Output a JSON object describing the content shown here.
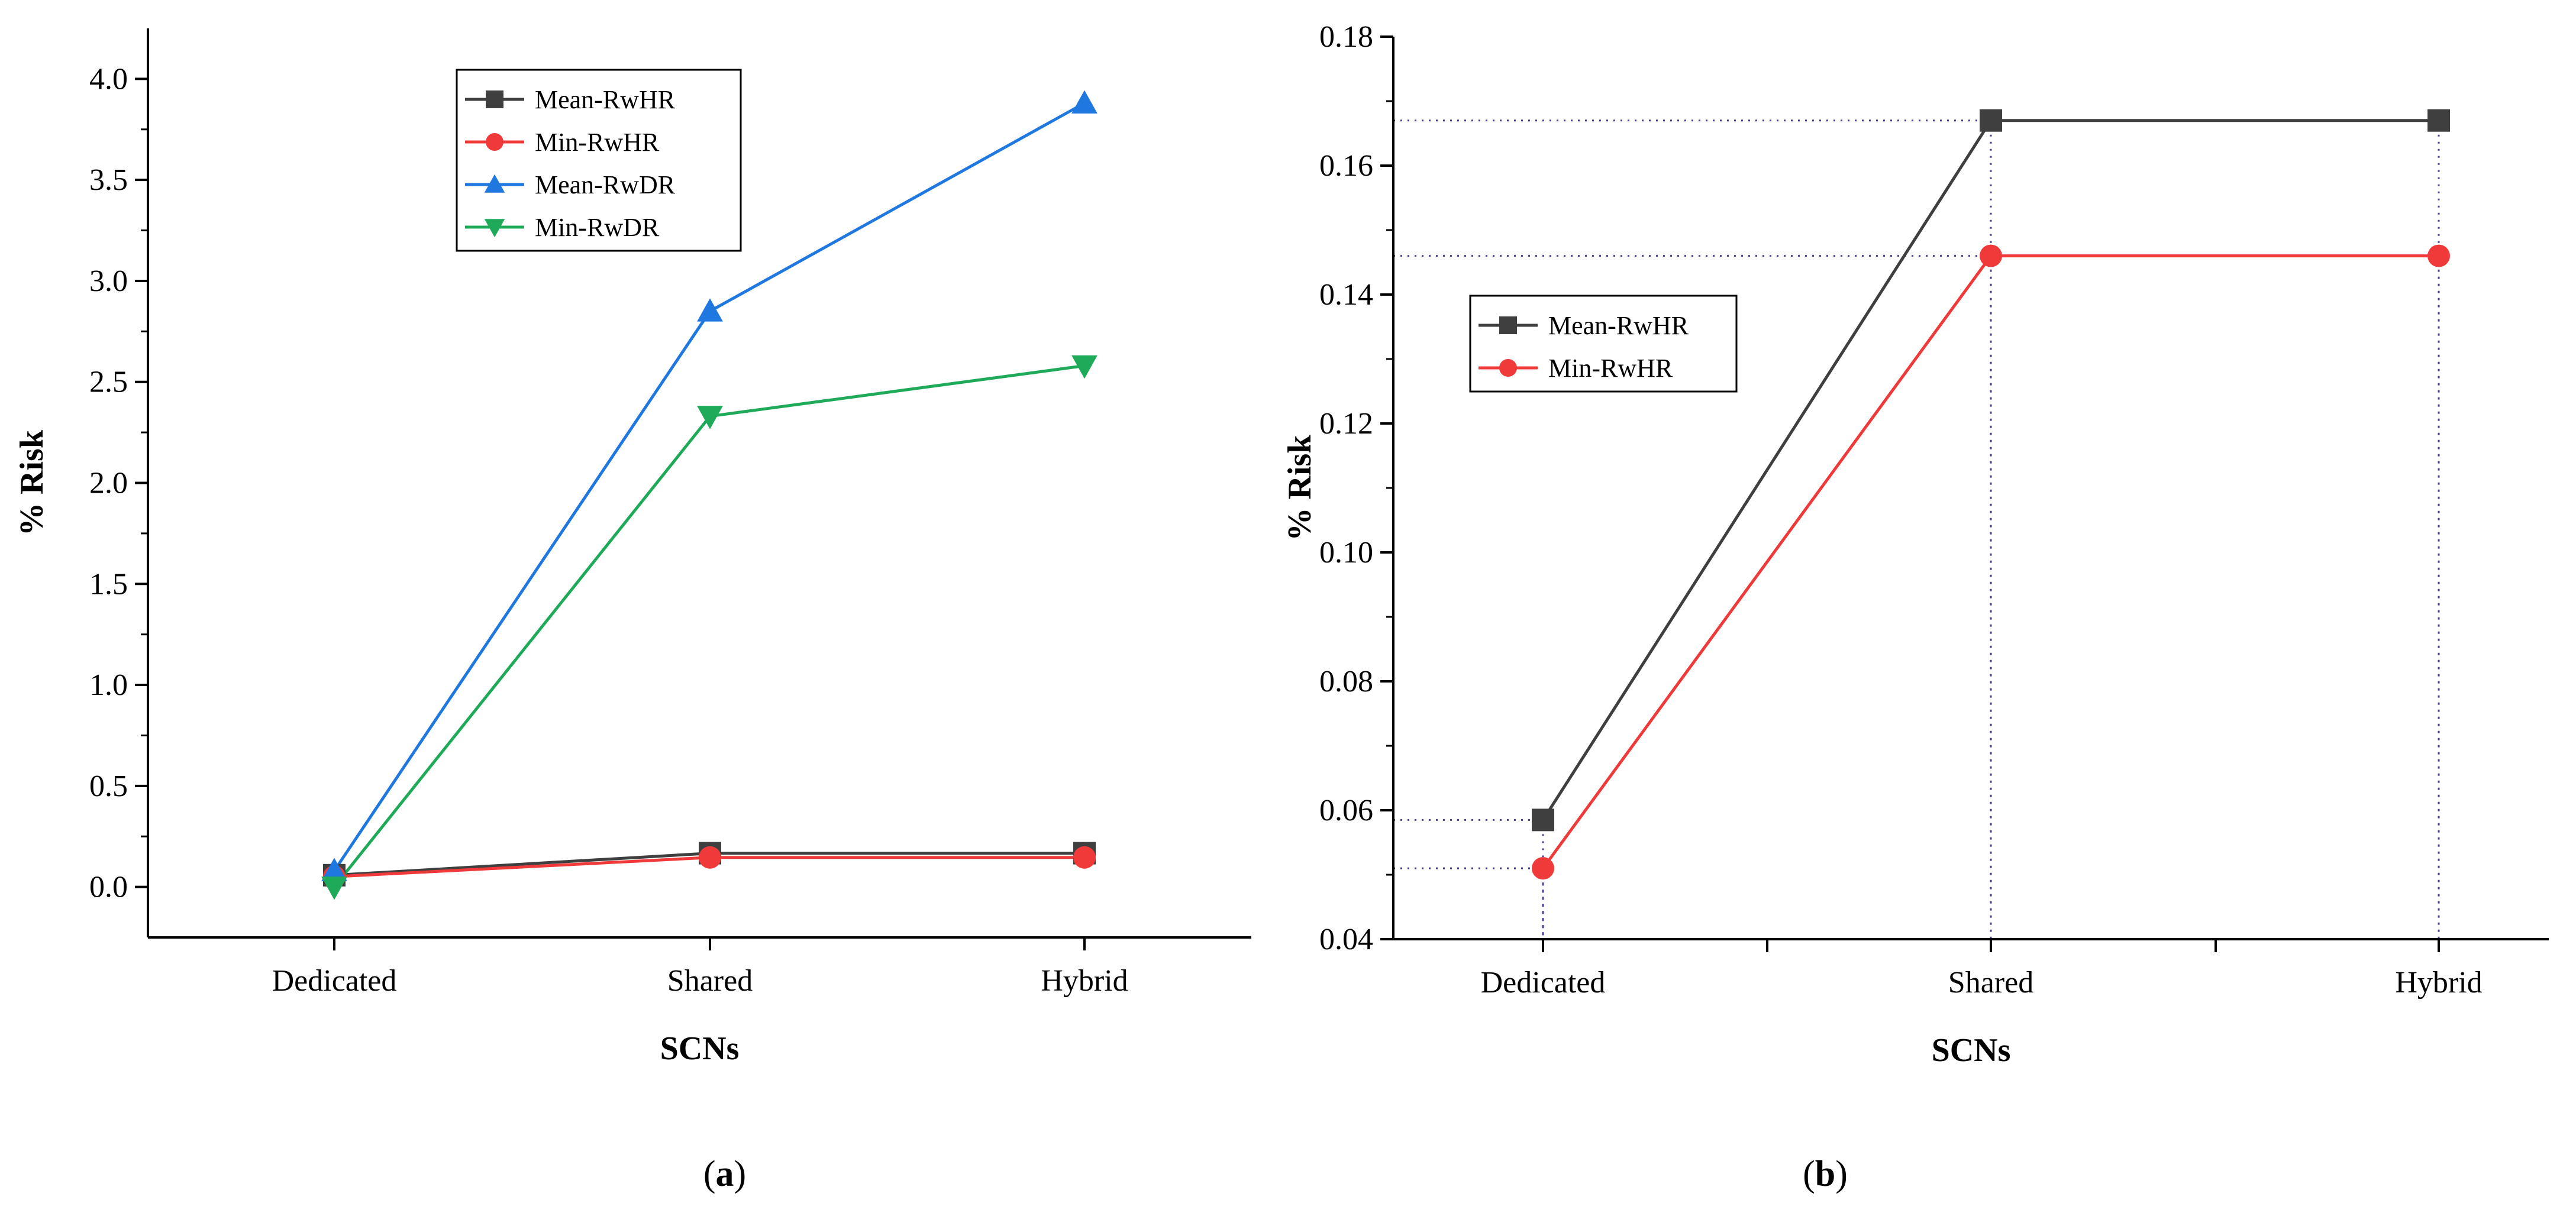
{
  "chart_data": [
    {
      "type": "line",
      "panel": "(a)",
      "xlabel": "SCNs",
      "ylabel": "% Risk",
      "categories": [
        "Dedicated",
        "Shared",
        "Hybrid"
      ],
      "ylim": [
        -0.25,
        4.25
      ],
      "yticks": [
        0.0,
        0.5,
        1.0,
        1.5,
        2.0,
        2.5,
        3.0,
        3.5,
        4.0
      ],
      "ytick_labels": [
        "0.0",
        "0.5",
        "1.0",
        "1.5",
        "2.0",
        "2.5",
        "3.0",
        "3.5",
        "4.0"
      ],
      "legend_position": "top-center",
      "series": [
        {
          "name": "Mean-RwHR",
          "color": "#3f3f3f",
          "marker": "square",
          "values": [
            0.058,
            0.167,
            0.167
          ]
        },
        {
          "name": "Min-RwHR",
          "color": "#f03a3a",
          "marker": "circle",
          "values": [
            0.051,
            0.146,
            0.146
          ]
        },
        {
          "name": "Mean-RwDR",
          "color": "#1f77e0",
          "marker": "triangle-up",
          "values": [
            0.08,
            2.85,
            3.88
          ]
        },
        {
          "name": "Min-RwDR",
          "color": "#1faa5a",
          "marker": "triangle-down",
          "values": [
            0.0,
            2.33,
            2.58
          ]
        }
      ]
    },
    {
      "type": "line",
      "panel": "(b)",
      "xlabel": "SCNs",
      "ylabel": "% Risk",
      "categories": [
        "Dedicated",
        "Shared",
        "Hybrid"
      ],
      "ylim": [
        0.04,
        0.18
      ],
      "yticks": [
        0.04,
        0.06,
        0.08,
        0.1,
        0.12,
        0.14,
        0.16,
        0.18
      ],
      "ytick_labels": [
        "0.04",
        "0.06",
        "0.08",
        "0.10",
        "0.12",
        "0.14",
        "0.16",
        "0.18"
      ],
      "legend_position": "upper-left",
      "dotted_reference_lines": true,
      "series": [
        {
          "name": "Mean-RwHR",
          "color": "#3f3f3f",
          "marker": "square",
          "values": [
            0.0585,
            0.167,
            0.167
          ]
        },
        {
          "name": "Min-RwHR",
          "color": "#f03a3a",
          "marker": "circle",
          "values": [
            0.051,
            0.146,
            0.146
          ]
        }
      ]
    }
  ],
  "captions": {
    "a": {
      "open": "(",
      "letter": "a",
      "close": ")"
    },
    "b": {
      "open": "(",
      "letter": "b",
      "close": ")"
    }
  }
}
